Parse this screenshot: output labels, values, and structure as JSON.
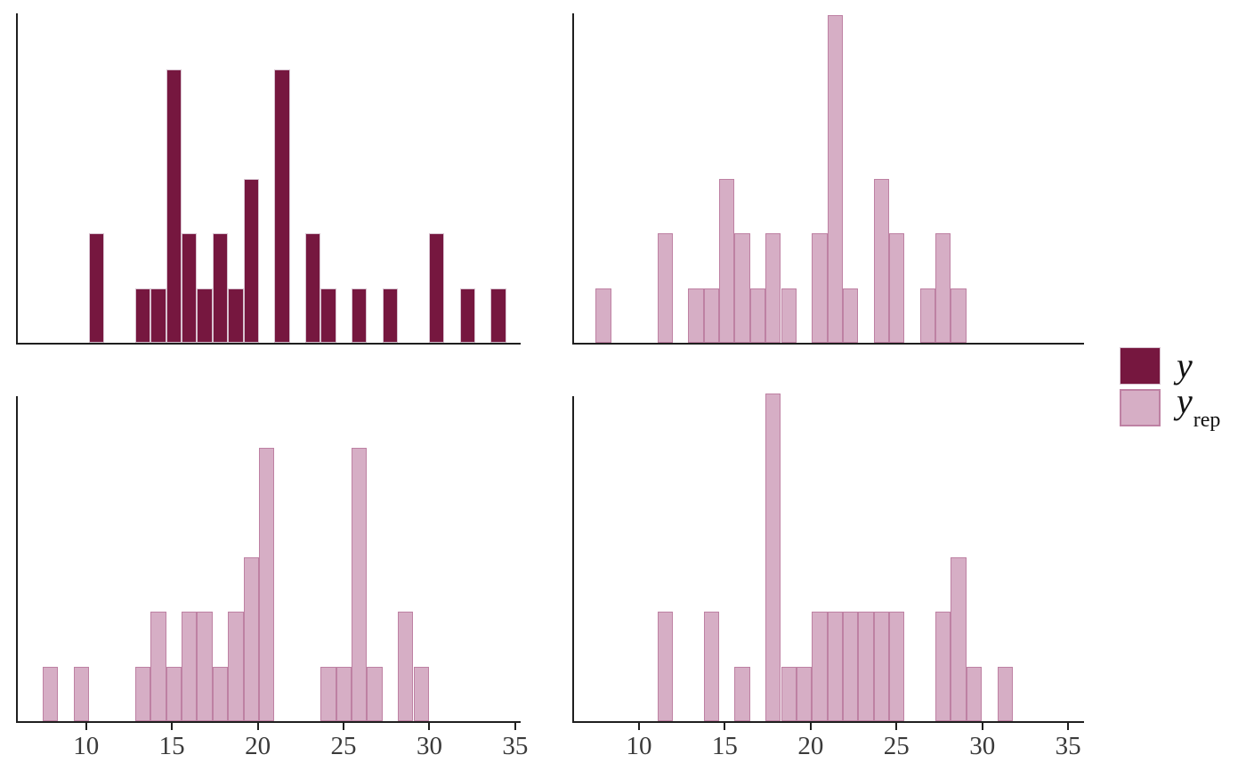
{
  "figure_kind": "posterior predictive check histograms (y vs y_rep)",
  "colors": {
    "dark_fill": "#76173F",
    "dark_border": "#D8C3D0",
    "light_fill": "#D6AEC5",
    "light_border": "#BE81A3",
    "axis": "#1F1F1F",
    "tick_label": "#3A3A3A",
    "background": "#FFFFFF"
  },
  "legend": {
    "items": [
      {
        "label": "y",
        "subscript": "",
        "series": "y",
        "swatch": "dark"
      },
      {
        "label": "y",
        "subscript": "rep",
        "series": "y_rep",
        "swatch": "light"
      }
    ]
  },
  "axis": {
    "ticks": [
      "10",
      "15",
      "20",
      "25",
      "30",
      "35"
    ],
    "tick_values": [
      10,
      15,
      20,
      25,
      30,
      35
    ]
  },
  "chart_data": [
    {
      "type": "bar",
      "subtype": "histogram",
      "panel": "top-left",
      "series": "y",
      "style": "dark",
      "binwidth": 0.9,
      "n": 32,
      "title": "",
      "xlabel": "",
      "ylabel": "",
      "xlim": [
        6.0,
        35.9
      ],
      "ylim": [
        0,
        6
      ],
      "grid": false,
      "legend_position": "right",
      "bins": [
        {
          "x": 10.17,
          "count": 2
        },
        {
          "x": 12.87,
          "count": 1
        },
        {
          "x": 13.77,
          "count": 1
        },
        {
          "x": 14.67,
          "count": 5
        },
        {
          "x": 15.57,
          "count": 2
        },
        {
          "x": 16.47,
          "count": 1
        },
        {
          "x": 17.37,
          "count": 2
        },
        {
          "x": 18.27,
          "count": 1
        },
        {
          "x": 19.17,
          "count": 3
        },
        {
          "x": 20.97,
          "count": 5
        },
        {
          "x": 22.77,
          "count": 2
        },
        {
          "x": 23.67,
          "count": 1
        },
        {
          "x": 25.47,
          "count": 1
        },
        {
          "x": 27.27,
          "count": 1
        },
        {
          "x": 29.97,
          "count": 2
        },
        {
          "x": 31.77,
          "count": 1
        },
        {
          "x": 33.57,
          "count": 1
        }
      ]
    },
    {
      "type": "bar",
      "subtype": "histogram",
      "panel": "top-right",
      "series": "y_rep",
      "style": "light",
      "binwidth": 0.9,
      "n": 32,
      "title": "",
      "xlabel": "",
      "ylabel": "",
      "xlim": [
        6.2,
        35.9
      ],
      "ylim": [
        0,
        6
      ],
      "grid": false,
      "bins": [
        {
          "x": 7.47,
          "count": 1
        },
        {
          "x": 11.07,
          "count": 2
        },
        {
          "x": 12.87,
          "count": 1
        },
        {
          "x": 13.77,
          "count": 1
        },
        {
          "x": 14.67,
          "count": 3
        },
        {
          "x": 15.57,
          "count": 2
        },
        {
          "x": 16.47,
          "count": 1
        },
        {
          "x": 17.37,
          "count": 2
        },
        {
          "x": 18.27,
          "count": 1
        },
        {
          "x": 20.07,
          "count": 2
        },
        {
          "x": 20.97,
          "count": 6
        },
        {
          "x": 21.87,
          "count": 1
        },
        {
          "x": 23.67,
          "count": 3
        },
        {
          "x": 24.57,
          "count": 2
        },
        {
          "x": 26.37,
          "count": 1
        },
        {
          "x": 27.27,
          "count": 2
        },
        {
          "x": 28.17,
          "count": 1
        }
      ]
    },
    {
      "type": "bar",
      "subtype": "histogram",
      "panel": "bottom-left",
      "series": "y_rep",
      "style": "light",
      "binwidth": 0.9,
      "n": 32,
      "title": "",
      "xlabel": "",
      "ylabel": "",
      "xlim": [
        6.0,
        35.9
      ],
      "ylim": [
        0,
        6
      ],
      "grid": false,
      "bins": [
        {
          "x": 7.47,
          "count": 1
        },
        {
          "x": 9.27,
          "count": 1
        },
        {
          "x": 12.87,
          "count": 1
        },
        {
          "x": 13.77,
          "count": 2
        },
        {
          "x": 14.67,
          "count": 1
        },
        {
          "x": 15.57,
          "count": 2
        },
        {
          "x": 16.47,
          "count": 2
        },
        {
          "x": 17.37,
          "count": 1
        },
        {
          "x": 18.27,
          "count": 2
        },
        {
          "x": 19.17,
          "count": 3
        },
        {
          "x": 20.07,
          "count": 5
        },
        {
          "x": 23.67,
          "count": 1
        },
        {
          "x": 24.57,
          "count": 1
        },
        {
          "x": 25.47,
          "count": 5
        },
        {
          "x": 26.37,
          "count": 1
        },
        {
          "x": 28.17,
          "count": 2
        },
        {
          "x": 29.07,
          "count": 1
        }
      ]
    },
    {
      "type": "bar",
      "subtype": "histogram",
      "panel": "bottom-right",
      "series": "y_rep",
      "style": "light",
      "binwidth": 0.9,
      "n": 32,
      "title": "",
      "xlabel": "",
      "ylabel": "",
      "xlim": [
        6.2,
        35.9
      ],
      "ylim": [
        0,
        6
      ],
      "grid": false,
      "bins": [
        {
          "x": 11.07,
          "count": 2
        },
        {
          "x": 13.77,
          "count": 2
        },
        {
          "x": 15.57,
          "count": 1
        },
        {
          "x": 17.37,
          "count": 6
        },
        {
          "x": 18.27,
          "count": 1
        },
        {
          "x": 19.17,
          "count": 1
        },
        {
          "x": 20.07,
          "count": 2
        },
        {
          "x": 20.97,
          "count": 2
        },
        {
          "x": 21.87,
          "count": 2
        },
        {
          "x": 22.77,
          "count": 2
        },
        {
          "x": 23.67,
          "count": 2
        },
        {
          "x": 24.57,
          "count": 2
        },
        {
          "x": 27.27,
          "count": 2
        },
        {
          "x": 28.17,
          "count": 3
        },
        {
          "x": 29.07,
          "count": 1
        },
        {
          "x": 30.87,
          "count": 1
        }
      ]
    }
  ]
}
